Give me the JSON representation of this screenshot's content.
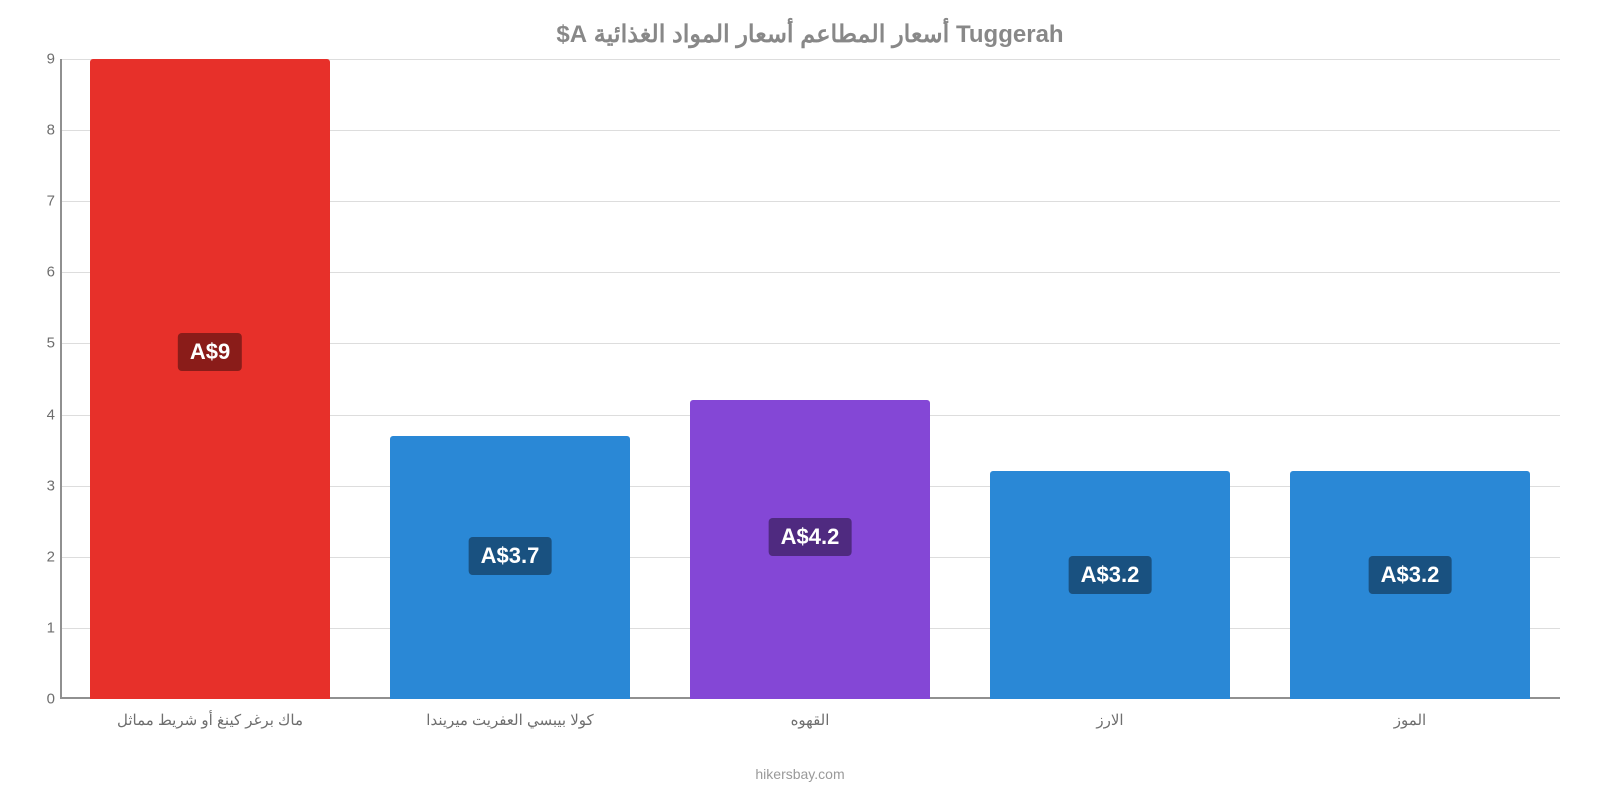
{
  "chart": {
    "type": "bar",
    "title": "Tuggerah أسعار المطاعم أسعار المواد الغذائية A$",
    "title_fontsize": 24,
    "title_color": "#888888",
    "background_color": "#ffffff",
    "grid_color": "#dddddd",
    "axis_color": "#909090",
    "tick_color": "#6e6e6e",
    "source": "hikersbay.com",
    "ylim": [
      0,
      9
    ],
    "ytick_step": 1,
    "yticks": [
      0,
      1,
      2,
      3,
      4,
      5,
      6,
      7,
      8,
      9
    ],
    "bar_width_pct": 80,
    "bar_label_fontsize": 22,
    "bar_label_bg": "rgba(0,0,0,0.4)",
    "bar_label_color": "#ffffff",
    "categories": [
      "ماك برغر كينغ أو شريط مماثل",
      "كولا بيبسي العفريت ميريندا",
      "القهوه",
      "الارز",
      "الموز"
    ],
    "series": [
      {
        "value": 9.0,
        "display": "A$9",
        "color": "#e7302a"
      },
      {
        "value": 3.7,
        "display": "A$3.7",
        "color": "#2a88d6"
      },
      {
        "value": 4.2,
        "display": "A$4.2",
        "color": "#8447d6"
      },
      {
        "value": 3.2,
        "display": "A$3.2",
        "color": "#2a88d6"
      },
      {
        "value": 3.2,
        "display": "A$3.2",
        "color": "#2a88d6"
      }
    ]
  }
}
